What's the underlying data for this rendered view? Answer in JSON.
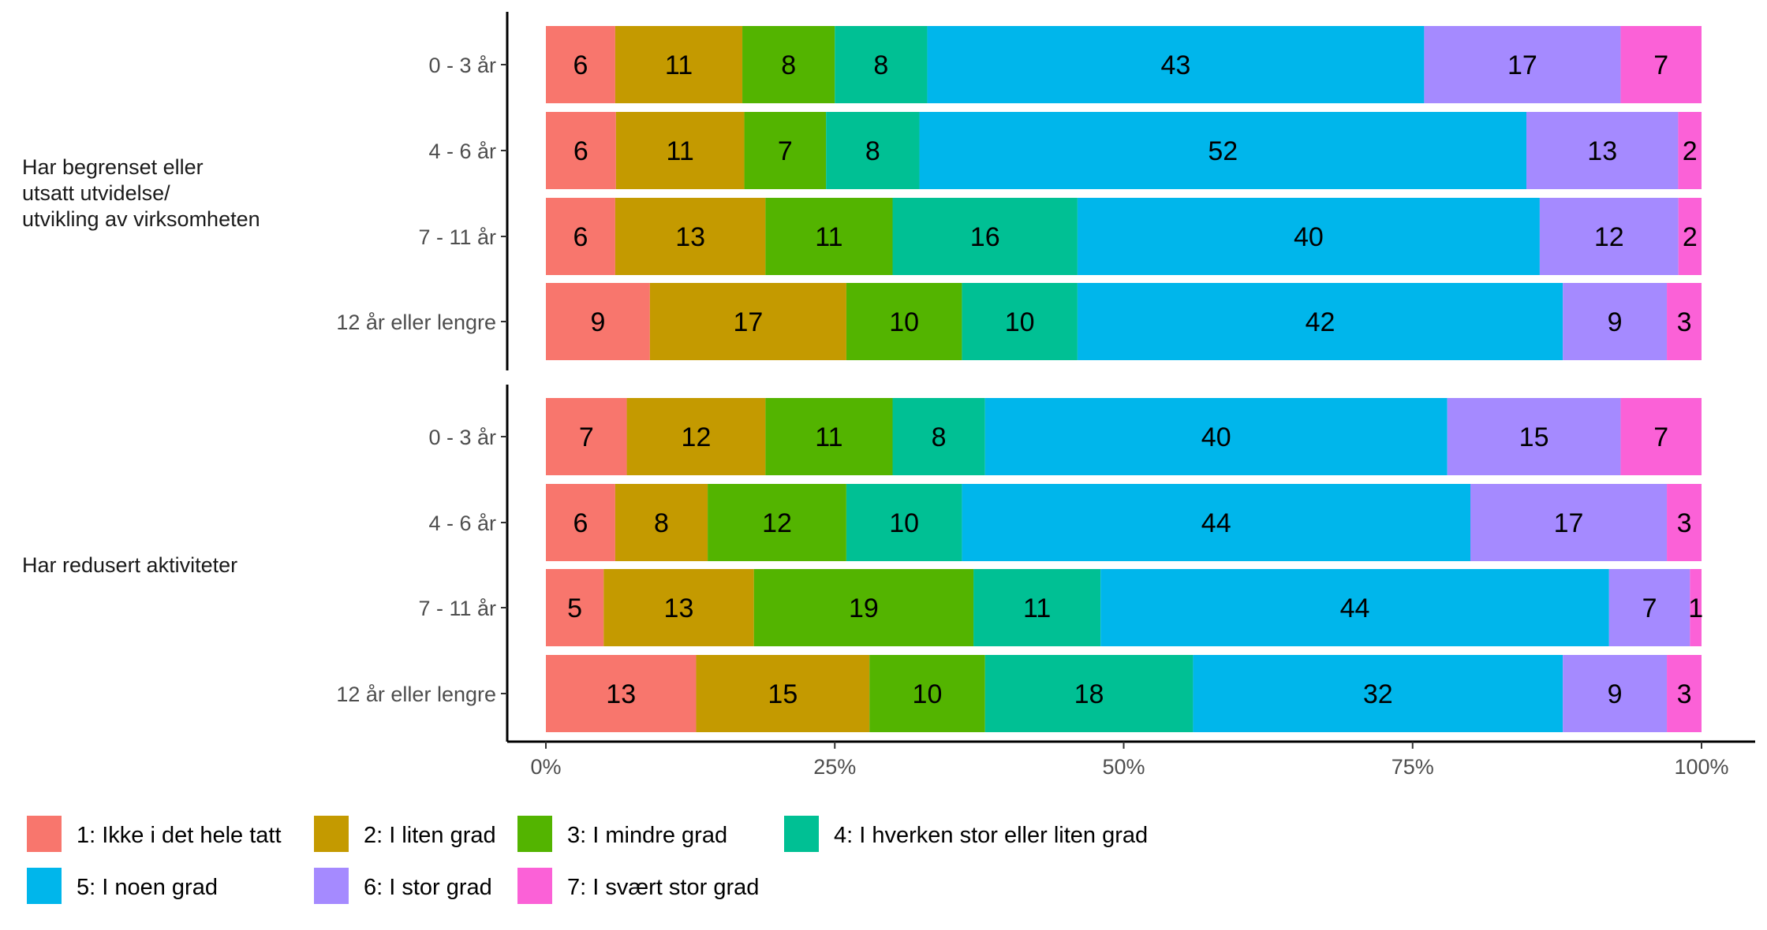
{
  "chart_data": {
    "type": "bar",
    "orientation": "horizontal",
    "stacked": "percent",
    "x_ticks": [
      "0%",
      "25%",
      "50%",
      "75%",
      "100%"
    ],
    "xlim": [
      0,
      100
    ],
    "legend": {
      "placement": "bottom",
      "items": [
        {
          "label": "1: Ikke i det hele tatt",
          "color": "#F8766D"
        },
        {
          "label": "2: I liten grad",
          "color": "#C49A00"
        },
        {
          "label": "3: I mindre grad",
          "color": "#53B400"
        },
        {
          "label": "4: I hverken stor eller liten grad",
          "color": "#00C094"
        },
        {
          "label": "5: I noen grad",
          "color": "#00B6EB"
        },
        {
          "label": "6: I stor grad",
          "color": "#A58AFF"
        },
        {
          "label": "7: I svært stor grad",
          "color": "#FB61D7"
        }
      ]
    },
    "panels": [
      {
        "label": [
          "Har begrenset eller",
          "utsatt utvidelse/",
          "utvikling av virksomheten"
        ],
        "rows": [
          {
            "category": "0 - 3 år",
            "values": [
              6,
              11,
              8,
              8,
              43,
              17,
              7
            ]
          },
          {
            "category": "4 - 6 år",
            "values": [
              6,
              11,
              7,
              8,
              52,
              13,
              2
            ]
          },
          {
            "category": "7 - 11 år",
            "values": [
              6,
              13,
              11,
              16,
              40,
              12,
              2
            ]
          },
          {
            "category": "12 år eller lengre",
            "values": [
              9,
              17,
              10,
              10,
              42,
              9,
              3
            ]
          }
        ]
      },
      {
        "label": [
          "Har redusert aktiviteter"
        ],
        "rows": [
          {
            "category": "0 - 3 år",
            "values": [
              7,
              12,
              11,
              8,
              40,
              15,
              7
            ]
          },
          {
            "category": "4 - 6 år",
            "values": [
              6,
              8,
              12,
              10,
              44,
              17,
              3
            ]
          },
          {
            "category": "7 - 11 år",
            "values": [
              5,
              13,
              19,
              11,
              44,
              7,
              1
            ]
          },
          {
            "category": "12 år eller lengre",
            "values": [
              13,
              15,
              10,
              18,
              32,
              9,
              3
            ]
          }
        ]
      }
    ]
  }
}
